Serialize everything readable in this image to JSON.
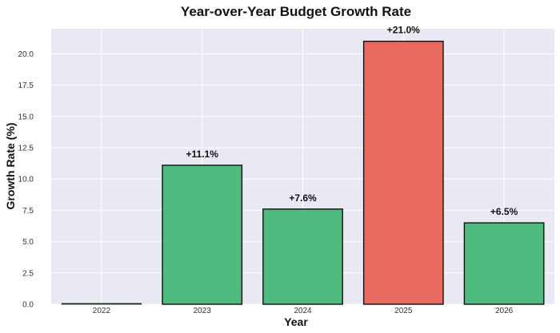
{
  "chart_data": {
    "type": "bar",
    "title": "Year-over-Year Budget Growth Rate",
    "xlabel": "Year",
    "ylabel": "Growth Rate (%)",
    "categories": [
      "2022",
      "2023",
      "2024",
      "2025",
      "2026"
    ],
    "values": [
      0.0,
      11.1,
      7.6,
      21.0,
      6.5
    ],
    "data_labels": [
      "",
      "+11.1%",
      "+7.6%",
      "+21.0%",
      "+6.5%"
    ],
    "ylim": [
      0,
      22.0
    ],
    "yticks": [
      0.0,
      2.5,
      5.0,
      7.5,
      10.0,
      12.5,
      15.0,
      17.5,
      20.0
    ],
    "ytick_labels": [
      "0.0",
      "2.5",
      "5.0",
      "7.5",
      "10.0",
      "12.5",
      "15.0",
      "17.5",
      "20.0"
    ],
    "grid": true,
    "colors": {
      "plot_background": "#e9e9f3",
      "grid": "#ffffff",
      "bar_normal": "#4fbb7f",
      "bar_highlight": "#e8695f",
      "bar_edge": "#111111"
    },
    "bar_colors": [
      "normal",
      "normal",
      "normal",
      "highlight",
      "normal"
    ]
  }
}
